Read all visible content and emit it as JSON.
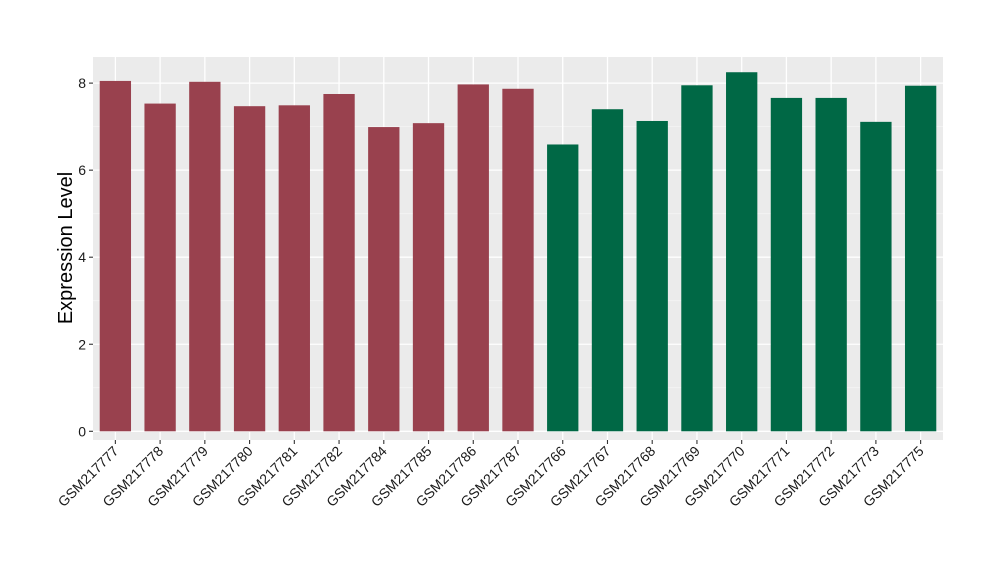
{
  "chart_data": {
    "type": "bar",
    "title": "",
    "xlabel": "",
    "ylabel": "Expression Level",
    "ylim": [
      -0.2,
      8.6
    ],
    "yticks": [
      0,
      2,
      4,
      6,
      8
    ],
    "grid": true,
    "panel_background": "#ebebeb",
    "categories": [
      "GSM217777",
      "GSM217778",
      "GSM217779",
      "GSM217780",
      "GSM217781",
      "GSM217782",
      "GSM217784",
      "GSM217785",
      "GSM217786",
      "GSM217787",
      "GSM217766",
      "GSM217767",
      "GSM217768",
      "GSM217769",
      "GSM217770",
      "GSM217771",
      "GSM217772",
      "GSM217773",
      "GSM217775"
    ],
    "values": [
      8.05,
      7.53,
      8.03,
      7.47,
      7.49,
      7.75,
      6.99,
      7.08,
      7.97,
      7.87,
      6.59,
      7.4,
      7.13,
      7.95,
      8.25,
      7.66,
      7.66,
      7.11,
      7.94
    ],
    "groups": [
      0,
      0,
      0,
      0,
      0,
      0,
      0,
      0,
      0,
      0,
      1,
      1,
      1,
      1,
      1,
      1,
      1,
      1,
      1
    ],
    "group_colors": [
      "#99414e",
      "#006845"
    ]
  }
}
